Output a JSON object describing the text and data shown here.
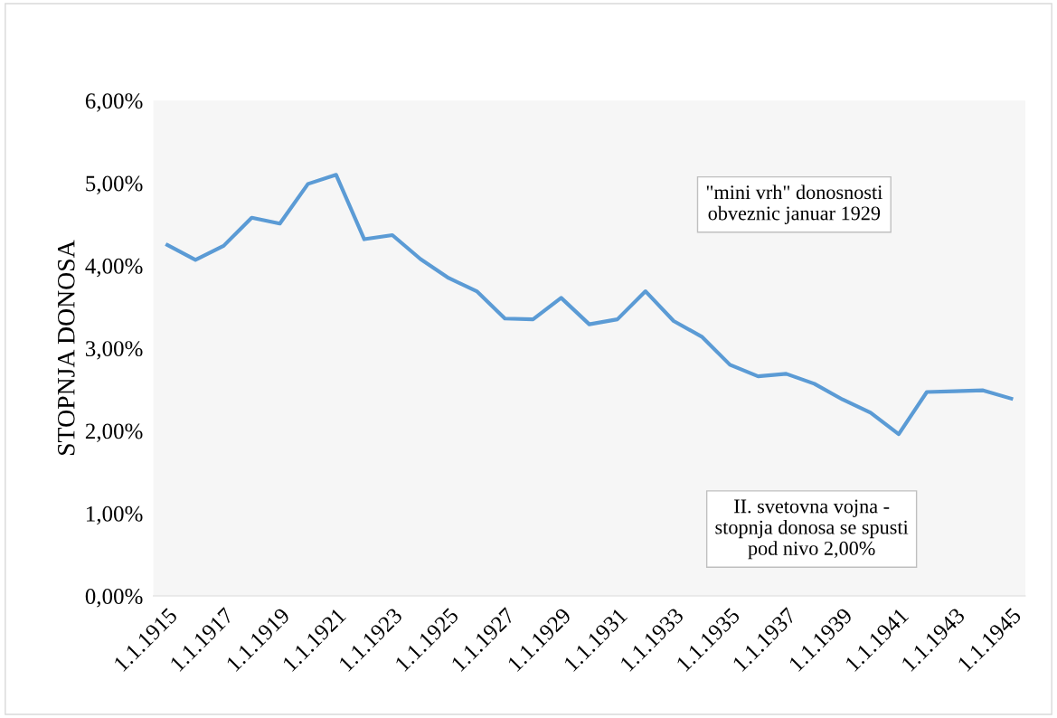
{
  "chart_data": {
    "type": "line",
    "ylabel": "STOPNJA DONOSA",
    "categories": [
      "1.1.1915",
      null,
      "1.1.1917",
      null,
      "1.1.1919",
      null,
      "1.1.1921",
      null,
      "1.1.1923",
      null,
      "1.1.1925",
      null,
      "1.1.1927",
      null,
      "1.1.1929",
      null,
      "1.1.1931",
      null,
      "1.1.1933",
      null,
      "1.1.1935",
      null,
      "1.1.1937",
      null,
      "1.1.1939",
      null,
      "1.1.1941",
      null,
      "1.1.1943",
      null,
      "1.1.1945"
    ],
    "series": [
      {
        "color": "#5b9bd5",
        "values": [
          4.25,
          4.07,
          4.24,
          4.58,
          4.51,
          4.99,
          5.1,
          4.32,
          4.37,
          4.08,
          3.85,
          3.69,
          3.36,
          3.35,
          3.61,
          3.29,
          3.35,
          3.69,
          3.33,
          3.14,
          2.8,
          2.66,
          2.69,
          2.57,
          2.38,
          2.22,
          1.96,
          2.47,
          2.48,
          2.49,
          2.39
        ]
      }
    ],
    "ylim": [
      0,
      6
    ],
    "yticks": [
      {
        "value": 0,
        "label": "0,00%"
      },
      {
        "value": 1,
        "label": "1,00%"
      },
      {
        "value": 2,
        "label": "2,00%"
      },
      {
        "value": 3,
        "label": "3,00%"
      },
      {
        "value": 4,
        "label": "4,00%"
      },
      {
        "value": 5,
        "label": "5,00%"
      },
      {
        "value": 6,
        "label": "6,00%"
      }
    ],
    "grid": false,
    "legend": false,
    "marker": "none",
    "line_style": "solid",
    "annotations": [
      "\"mini vrh\" donosnosti\nobveznic januar 1929",
      "II. svetovna vojna -\nstopnja donosa se spusti\npod nivo 2,00%"
    ]
  }
}
